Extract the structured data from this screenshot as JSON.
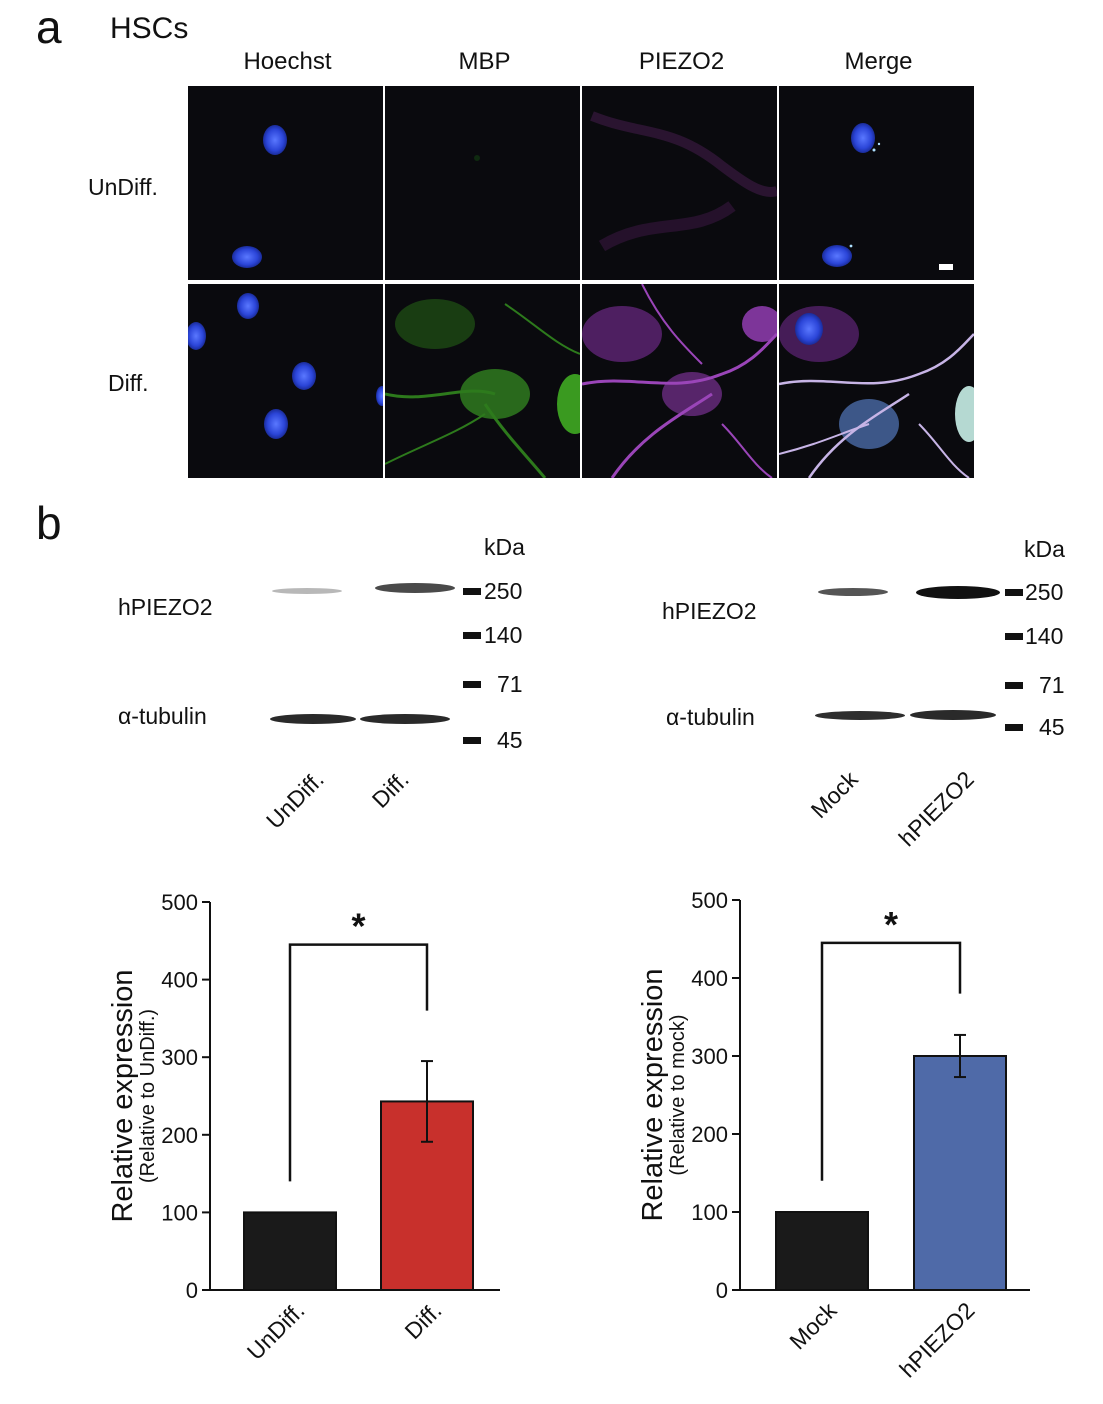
{
  "panel_a": {
    "letter": "a",
    "title": "HSCs",
    "columns": [
      "Hoechst",
      "MBP",
      "PIEZO2",
      "Merge"
    ],
    "rows": [
      "UnDiff.",
      "Diff."
    ]
  },
  "panel_b": {
    "letter": "b",
    "blots": [
      {
        "kda_label": "kDa",
        "target_label": "hPIEZO2",
        "control_label": "α-tubulin",
        "markers": [
          "250",
          "140",
          "71",
          "45"
        ],
        "lanes": [
          "UnDiff.",
          "Diff."
        ]
      },
      {
        "kda_label": "kDa",
        "target_label": "hPIEZO2",
        "control_label": "α-tubulin",
        "markers": [
          "250",
          "140",
          "71",
          "45"
        ],
        "lanes": [
          "Mock",
          "hPIEZO2"
        ]
      }
    ]
  },
  "chart_data": [
    {
      "type": "bar",
      "categories": [
        "UnDiff.",
        "Diff."
      ],
      "values": [
        100,
        243
      ],
      "errors": [
        0,
        52
      ],
      "ylabel": "Relative expression",
      "ylabel_sub": "(Relative to UnDiff.)",
      "ylim": [
        0,
        500
      ],
      "yticks": [
        0,
        100,
        200,
        300,
        400,
        500
      ],
      "colors": [
        "#1a1a1a",
        "#c8302c"
      ],
      "significance": "*"
    },
    {
      "type": "bar",
      "categories": [
        "Mock",
        "hPIEZO2"
      ],
      "values": [
        100,
        300
      ],
      "errors": [
        0,
        27
      ],
      "ylabel": "Relative expression",
      "ylabel_sub": "(Relative to mock)",
      "ylim": [
        0,
        500
      ],
      "yticks": [
        0,
        100,
        200,
        300,
        400,
        500
      ],
      "colors": [
        "#1a1a1a",
        "#4f6aa8"
      ],
      "significance": "*"
    }
  ]
}
